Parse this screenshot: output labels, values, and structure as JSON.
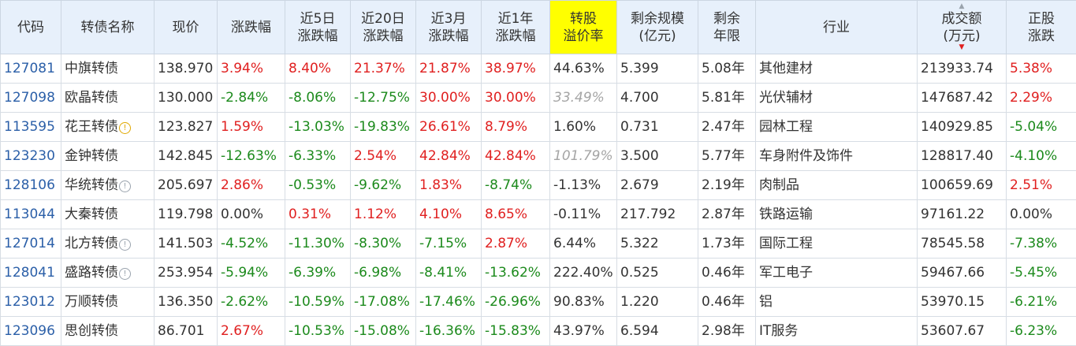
{
  "headers": {
    "code": "代码",
    "name": "转债名称",
    "price": "现价",
    "change": [
      "涨跌幅"
    ],
    "change5d": [
      "近5日",
      "涨跌幅"
    ],
    "change20d": [
      "近20日",
      "涨跌幅"
    ],
    "change3m": [
      "近3月",
      "涨跌幅"
    ],
    "change1y": [
      "近1年",
      "涨跌幅"
    ],
    "premium": [
      "转股",
      "溢价率"
    ],
    "size": [
      "剩余规模",
      "(亿元)"
    ],
    "years": [
      "剩余",
      "年限"
    ],
    "industry": "行业",
    "volume": [
      "成交额",
      "(万元)"
    ],
    "stock_change": [
      "正股",
      "涨跌"
    ]
  },
  "sort": {
    "column": "volume",
    "direction": "desc"
  },
  "colors": {
    "up": "#e02020",
    "down": "#1c8a1c",
    "code": "#2b5fa8",
    "header_bg": "#e7f0fb",
    "highlight": "#ffff00"
  },
  "rows": [
    {
      "code": "127081",
      "name": "中旗转债",
      "flag": "",
      "price": "138.970",
      "change": "3.94%",
      "change5d": "8.40%",
      "change20d": "21.37%",
      "change3m": "21.87%",
      "change1y": "38.97%",
      "premium": "44.63%",
      "premium_na": false,
      "size": "5.399",
      "years": "5.08年",
      "industry": "其他建材",
      "volume": "213933.74",
      "stock_change": "5.38%"
    },
    {
      "code": "127098",
      "name": "欧晶转债",
      "flag": "",
      "price": "130.000",
      "change": "-2.84%",
      "change5d": "-8.06%",
      "change20d": "-12.75%",
      "change3m": "30.00%",
      "change1y": "30.00%",
      "premium": "33.49%",
      "premium_na": true,
      "size": "4.700",
      "years": "5.81年",
      "industry": "光伏辅材",
      "volume": "147687.42",
      "stock_change": "2.29%"
    },
    {
      "code": "113595",
      "name": "花王转债",
      "flag": "warn",
      "flag_glyph": "!",
      "price": "123.827",
      "change": "1.59%",
      "change5d": "-13.03%",
      "change20d": "-19.83%",
      "change3m": "26.61%",
      "change1y": "8.79%",
      "premium": "1.60%",
      "premium_na": false,
      "size": "0.731",
      "years": "2.47年",
      "industry": "园林工程",
      "volume": "140929.85",
      "stock_change": "-5.04%"
    },
    {
      "code": "123230",
      "name": "金钟转债",
      "flag": "",
      "price": "142.845",
      "change": "-12.63%",
      "change5d": "-6.33%",
      "change20d": "2.54%",
      "change3m": "42.84%",
      "change1y": "42.84%",
      "premium": "101.79%",
      "premium_na": true,
      "size": "3.500",
      "years": "5.77年",
      "industry": "车身附件及饰件",
      "volume": "128817.40",
      "stock_change": "-4.10%"
    },
    {
      "code": "128106",
      "name": "华统转债",
      "flag": "info",
      "flag_glyph": "!",
      "price": "205.697",
      "change": "2.86%",
      "change5d": "-0.53%",
      "change20d": "-9.62%",
      "change3m": "1.83%",
      "change1y": "-8.74%",
      "premium": "-1.13%",
      "premium_na": false,
      "size": "2.679",
      "years": "2.19年",
      "industry": "肉制品",
      "volume": "100659.69",
      "stock_change": "2.51%"
    },
    {
      "code": "113044",
      "name": "大秦转债",
      "flag": "",
      "price": "119.798",
      "change": "0.00%",
      "change5d": "0.31%",
      "change20d": "1.12%",
      "change3m": "4.10%",
      "change1y": "8.65%",
      "premium": "-0.11%",
      "premium_na": false,
      "size": "217.792",
      "years": "2.87年",
      "industry": "铁路运输",
      "volume": "97161.22",
      "stock_change": "0.00%"
    },
    {
      "code": "127014",
      "name": "北方转债",
      "flag": "info",
      "flag_glyph": "!",
      "price": "141.503",
      "change": "-4.52%",
      "change5d": "-11.30%",
      "change20d": "-8.30%",
      "change3m": "-7.15%",
      "change1y": "2.87%",
      "premium": "6.44%",
      "premium_na": false,
      "size": "5.322",
      "years": "1.73年",
      "industry": "国际工程",
      "volume": "78545.58",
      "stock_change": "-7.38%"
    },
    {
      "code": "128041",
      "name": "盛路转债",
      "flag": "info",
      "flag_glyph": "!",
      "price": "253.954",
      "change": "-5.94%",
      "change5d": "-6.39%",
      "change20d": "-6.98%",
      "change3m": "-8.41%",
      "change1y": "-13.62%",
      "premium": "222.40%",
      "premium_na": false,
      "size": "0.525",
      "years": "0.46年",
      "industry": "军工电子",
      "volume": "59467.66",
      "stock_change": "-5.45%"
    },
    {
      "code": "123012",
      "name": "万顺转债",
      "flag": "",
      "price": "136.350",
      "change": "-2.62%",
      "change5d": "-10.59%",
      "change20d": "-17.08%",
      "change3m": "-17.46%",
      "change1y": "-26.96%",
      "premium": "90.83%",
      "premium_na": false,
      "size": "1.220",
      "years": "0.46年",
      "industry": "铝",
      "volume": "53970.15",
      "stock_change": "-6.21%"
    },
    {
      "code": "123096",
      "name": "思创转债",
      "flag": "",
      "price": "86.701",
      "change": "2.67%",
      "change5d": "-10.53%",
      "change20d": "-15.08%",
      "change3m": "-16.36%",
      "change1y": "-15.83%",
      "premium": "43.97%",
      "premium_na": false,
      "size": "6.594",
      "years": "2.98年",
      "industry": "IT服务",
      "volume": "53607.67",
      "stock_change": "-6.23%"
    }
  ]
}
